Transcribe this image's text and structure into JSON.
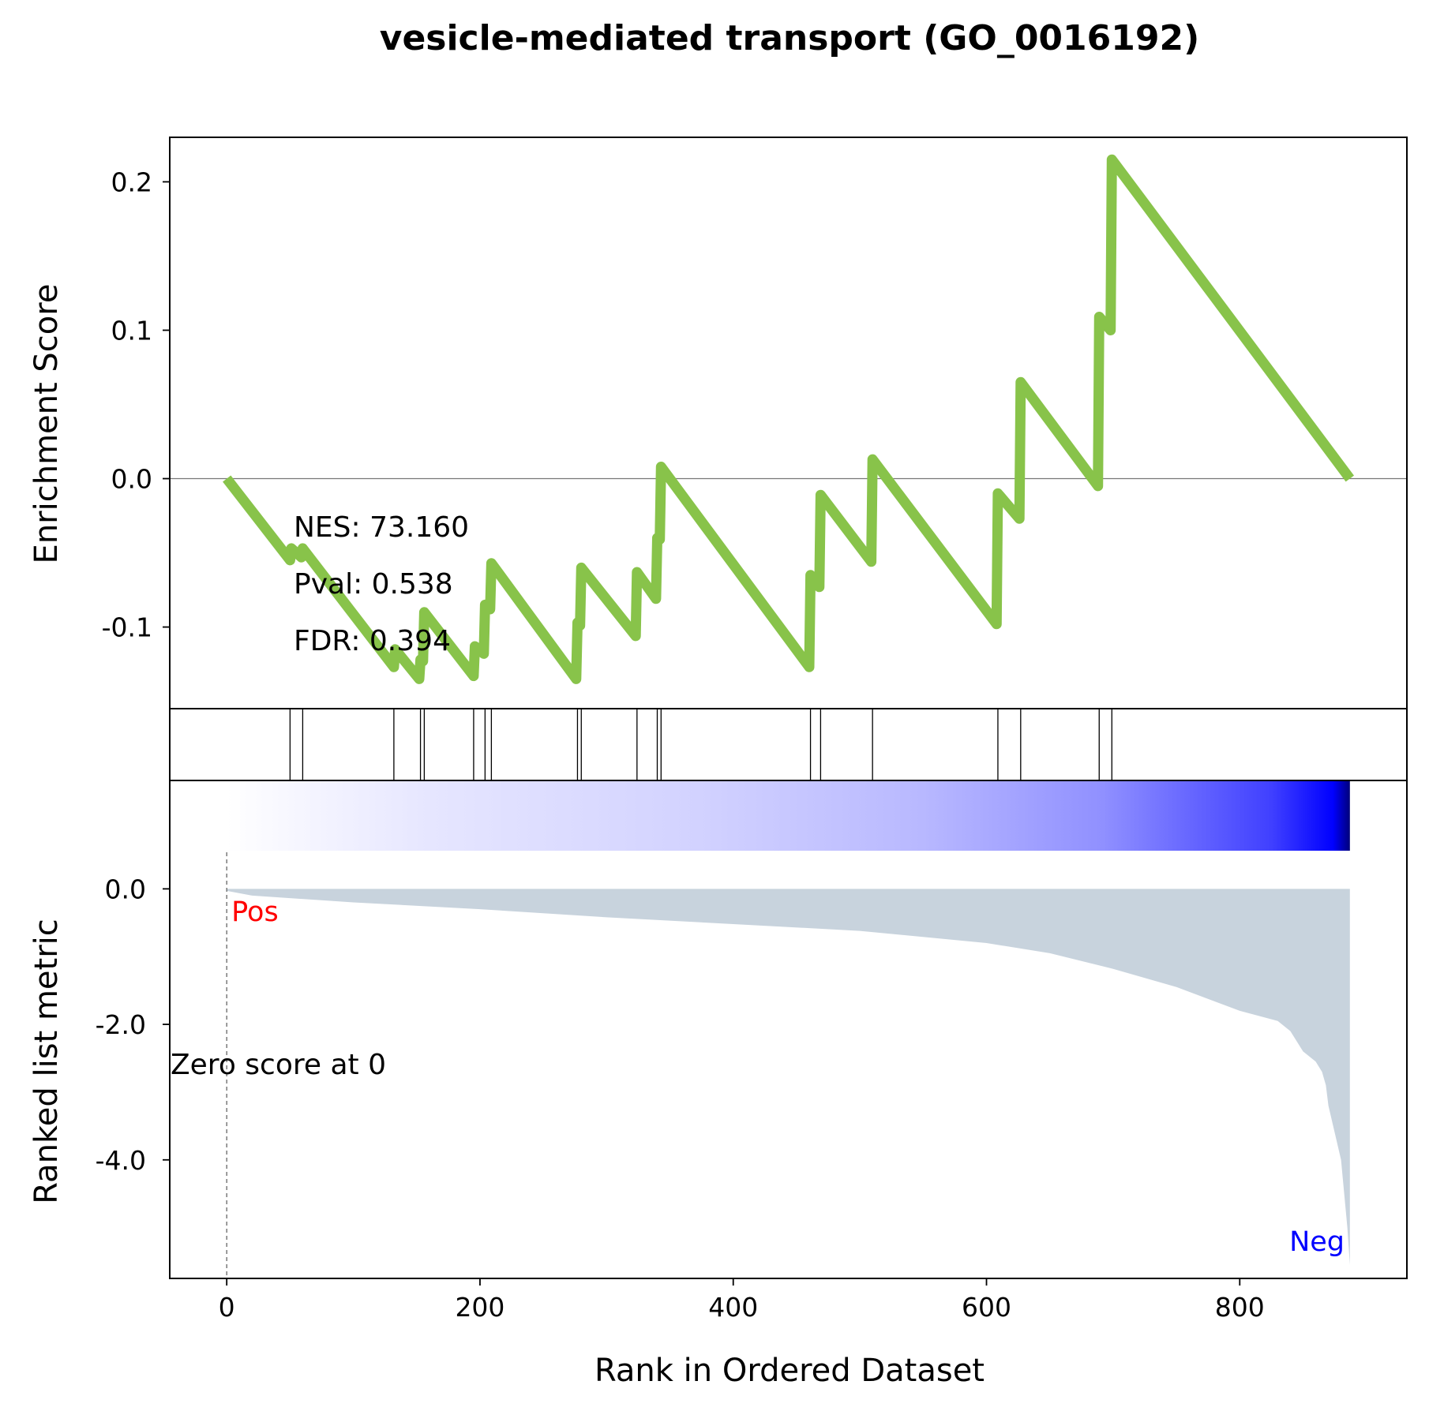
{
  "title": "vesicle-mediated transport (GO_0016192)",
  "chart_data": [
    {
      "panel": "enrichment",
      "type": "line",
      "ylabel": "Enrichment Score",
      "ylim": [
        -0.155,
        0.23
      ],
      "xlim": [
        -45,
        932
      ],
      "yticks": [
        0.2,
        0.1,
        0.0,
        -0.1
      ],
      "ytick_labels": [
        "0.2",
        "0.1",
        "0.0",
        "-0.1"
      ],
      "color": "#88c34a",
      "zero_line": true,
      "stats": [
        "NES: 73.160",
        "Pval: 0.538",
        "FDR: 0.394"
      ],
      "series": [
        {
          "x": [
            0,
            50,
            51,
            59,
            60,
            132,
            133,
            152,
            153,
            155,
            156,
            195,
            196,
            203,
            204,
            208,
            209,
            276,
            277,
            279,
            280,
            323,
            324,
            339,
            340,
            342,
            343,
            460,
            461,
            468,
            469,
            509,
            510,
            608,
            609,
            626,
            627,
            688,
            689,
            698,
            699,
            887
          ],
          "y": [
            0.0,
            -0.055,
            -0.047,
            -0.053,
            -0.047,
            -0.127,
            -0.115,
            -0.135,
            -0.122,
            -0.123,
            -0.09,
            -0.133,
            -0.113,
            -0.118,
            -0.085,
            -0.088,
            -0.057,
            -0.135,
            -0.097,
            -0.099,
            -0.06,
            -0.106,
            -0.063,
            -0.081,
            -0.04,
            -0.041,
            0.008,
            -0.127,
            -0.065,
            -0.073,
            -0.011,
            -0.056,
            0.013,
            -0.098,
            -0.01,
            -0.027,
            0.065,
            -0.005,
            0.109,
            0.1,
            0.215,
            0.0
          ]
        }
      ]
    },
    {
      "panel": "hits",
      "type": "rug",
      "hits": [
        50,
        60,
        132,
        153,
        156,
        195,
        204,
        209,
        277,
        280,
        324,
        340,
        343,
        461,
        469,
        510,
        609,
        627,
        689,
        699
      ],
      "color": "#000000"
    },
    {
      "panel": "ranked-metric",
      "type": "area",
      "xlabel": "Rank in Ordered Dataset",
      "ylabel": "Ranked list metric",
      "ylim": [
        -5.75,
        1.6
      ],
      "xlim": [
        -45,
        932
      ],
      "yticks": [
        0.0,
        -2.0,
        -4.0
      ],
      "ytick_labels": [
        "0.0",
        "-2.0",
        "-4.0"
      ],
      "xticks": [
        0,
        200,
        400,
        600,
        800
      ],
      "xtick_labels": [
        "0",
        "200",
        "400",
        "600",
        "800"
      ],
      "fill_color": "#c8d3dd",
      "gradient_colors": [
        "#ffffff",
        "#e6e6ff",
        "#d2d2ff",
        "#b8b8ff",
        "#9090ff",
        "#4040ff",
        "#0000ff",
        "#00007a"
      ],
      "pos_label": "Pos",
      "pos_color": "#ff0000",
      "neg_label": "Neg",
      "neg_color": "#0000ff",
      "zero_label": "Zero score at 0",
      "zero_rank": 0,
      "series": [
        {
          "x": [
            0,
            20,
            100,
            200,
            300,
            400,
            500,
            600,
            650,
            700,
            750,
            800,
            830,
            840,
            850,
            860,
            865,
            868,
            870,
            875,
            880,
            885,
            887
          ],
          "y": [
            -0.03,
            -0.1,
            -0.2,
            -0.3,
            -0.42,
            -0.52,
            -0.62,
            -0.8,
            -0.95,
            -1.18,
            -1.45,
            -1.8,
            -1.95,
            -2.1,
            -2.4,
            -2.55,
            -2.7,
            -2.9,
            -3.2,
            -3.6,
            -4.0,
            -5.0,
            -5.55
          ]
        }
      ]
    }
  ]
}
